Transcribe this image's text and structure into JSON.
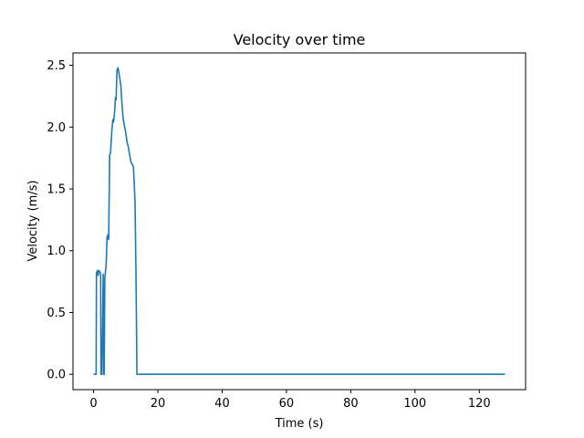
{
  "chart_data": {
    "type": "line",
    "title": "Velocity over time",
    "xlabel": "Time (s)",
    "ylabel": "Velocity (m/s)",
    "xlim": [
      -6.4,
      134.4
    ],
    "ylim": [
      -0.124,
      2.6
    ],
    "xticks": [
      0,
      20,
      40,
      60,
      80,
      100,
      120
    ],
    "yticks": [
      0.0,
      0.5,
      1.0,
      1.5,
      2.0,
      2.5
    ],
    "xtick_labels": [
      "0",
      "20",
      "40",
      "60",
      "80",
      "100",
      "120"
    ],
    "ytick_labels": [
      "0.0",
      "0.5",
      "1.0",
      "1.5",
      "2.0",
      "2.5"
    ],
    "grid": false,
    "color": "#1f77b4",
    "series": [
      {
        "x": [
          0.0,
          0.8,
          0.9,
          1.2,
          1.4,
          1.6,
          2.0,
          2.2,
          2.3,
          2.4,
          2.6,
          3.0,
          3.2,
          3.3,
          3.5,
          3.9,
          4.2,
          4.5,
          4.7,
          5.0,
          5.3,
          5.7,
          6.0,
          6.2,
          6.6,
          6.8,
          7.0,
          7.3,
          7.6,
          8.0,
          8.3,
          8.5,
          8.8,
          9.2,
          9.6,
          10.0,
          10.4,
          10.8,
          11.2,
          11.6,
          12.0,
          12.4,
          12.9,
          13.2,
          13.5,
          13.7,
          13.9,
          14.0,
          128.0
        ],
        "y": [
          0.0,
          0.0,
          0.82,
          0.84,
          0.8,
          0.84,
          0.83,
          0.8,
          0.0,
          0.0,
          0.0,
          0.81,
          0.0,
          0.0,
          0.78,
          0.88,
          1.11,
          1.13,
          1.09,
          1.77,
          1.8,
          1.98,
          2.06,
          2.04,
          2.14,
          2.24,
          2.22,
          2.46,
          2.48,
          2.42,
          2.37,
          2.33,
          2.2,
          2.07,
          2.01,
          1.96,
          1.88,
          1.84,
          1.78,
          1.72,
          1.7,
          1.68,
          1.4,
          0.8,
          0.0,
          0.0,
          0.0,
          0.0,
          0.0
        ]
      }
    ]
  }
}
